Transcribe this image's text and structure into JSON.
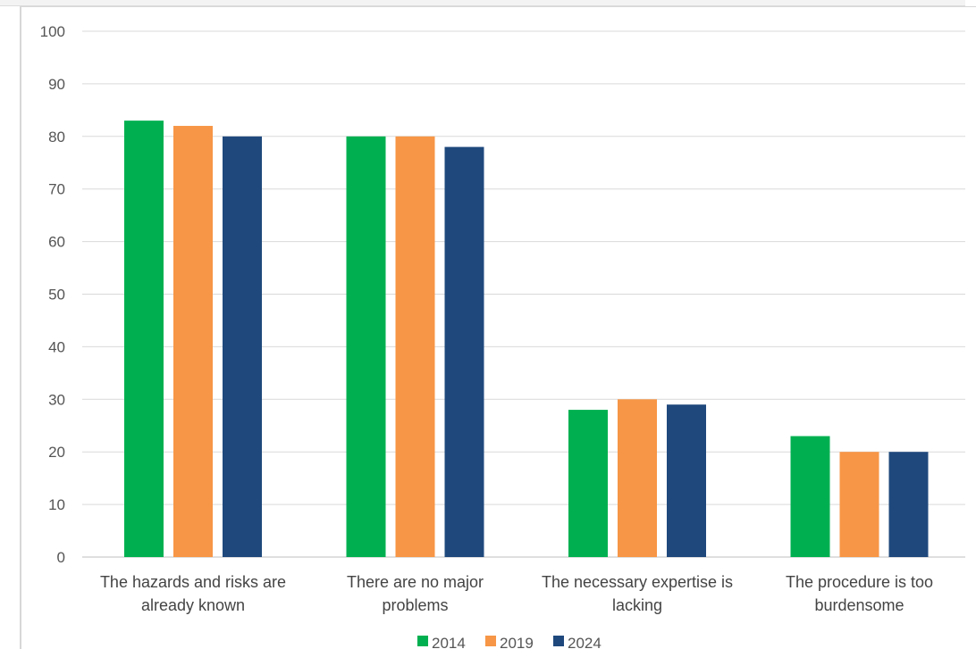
{
  "chart_data": {
    "type": "bar",
    "categories": [
      [
        "The hazards and risks are",
        "already known"
      ],
      [
        "There are no major",
        "problems"
      ],
      [
        "The necessary expertise is",
        "lacking"
      ],
      [
        "The procedure is too",
        "burdensome"
      ]
    ],
    "series": [
      {
        "name": "2014",
        "values": [
          83,
          80,
          28,
          23
        ],
        "color": "#00b050"
      },
      {
        "name": "2019",
        "values": [
          82,
          80,
          30,
          20
        ],
        "color": "#f79646"
      },
      {
        "name": "2024",
        "values": [
          80,
          78,
          29,
          20
        ],
        "color": "#1f497d"
      }
    ],
    "ylim": [
      0,
      100
    ],
    "yticks": [
      "0",
      "10",
      "20",
      "30",
      "40",
      "50",
      "60",
      "70",
      "80",
      "90",
      "100"
    ],
    "grid": true,
    "legend": "bottom"
  }
}
